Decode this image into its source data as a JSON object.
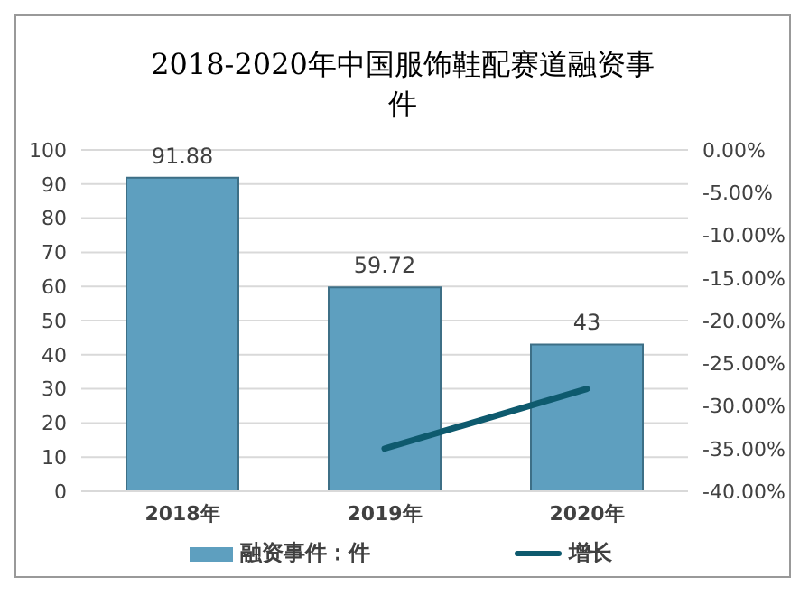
{
  "chart_data": {
    "type": "bar",
    "title": "2018-2020年中国服饰鞋配赛道融资事件",
    "categories": [
      "2018年",
      "2019年",
      "2020年"
    ],
    "series": [
      {
        "name": "融资事件：件",
        "color": "#5e9fbf",
        "values": [
          91.88,
          59.72,
          43
        ]
      },
      {
        "name": "增长",
        "type": "line",
        "axis": "y2",
        "color": "#0e5a6e",
        "values": [
          null,
          -35,
          -28
        ]
      }
    ],
    "ylim": [
      0,
      100
    ],
    "yticks": [
      0,
      10,
      20,
      30,
      40,
      50,
      60,
      70,
      80,
      90,
      100
    ],
    "y2lim": [
      -40,
      0
    ],
    "y2ticks": [
      {
        "value": 0,
        "label": "0.00%"
      },
      {
        "value": -5,
        "label": "-5.00%"
      },
      {
        "value": -10,
        "label": "-10.00%"
      },
      {
        "value": -15,
        "label": "-15.00%"
      },
      {
        "value": -20,
        "label": "-20.00%"
      },
      {
        "value": -25,
        "label": "-25.00%"
      },
      {
        "value": -30,
        "label": "-30.00%"
      },
      {
        "value": -35,
        "label": "-35.00%"
      },
      {
        "value": -40,
        "label": "-40.00%"
      }
    ],
    "grid": "y",
    "legend": "bottom",
    "value_labels": [
      "91.88",
      "59.72",
      "43"
    ],
    "marker": "none"
  }
}
